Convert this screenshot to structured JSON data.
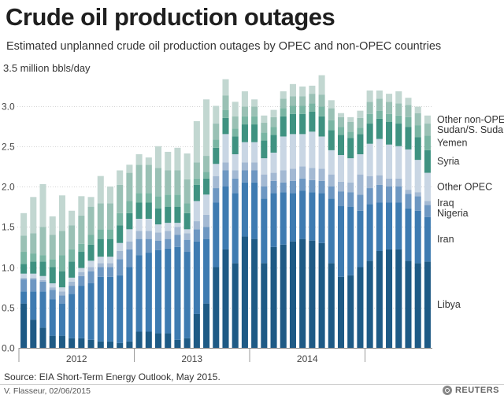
{
  "title": "Crude oil production outages",
  "subtitle": "Estimated unplanned crude oil production outages by OPEC and non-OPEC countries",
  "source": "Source: EIA Short-Term Energy Outlook, May 2015.",
  "credit": "V. Flasseur, 02/06/2015",
  "brand": "REUTERS",
  "chart_data": {
    "type": "bar",
    "stacked": true,
    "ylabel": "3.5 million bbls/day",
    "ylim": [
      0,
      3.5
    ],
    "yticks": [
      "0.0",
      "0.5",
      "1.0",
      "1.5",
      "2.0",
      "2.5",
      "3.0"
    ],
    "year_labels": [
      "2012",
      "2013",
      "2014"
    ],
    "categories": [
      "2012-01",
      "2012-02",
      "2012-03",
      "2012-04",
      "2012-05",
      "2012-06",
      "2012-07",
      "2012-08",
      "2012-09",
      "2012-10",
      "2012-11",
      "2012-12",
      "2013-01",
      "2013-02",
      "2013-03",
      "2013-04",
      "2013-05",
      "2013-06",
      "2013-07",
      "2013-08",
      "2013-09",
      "2013-10",
      "2013-11",
      "2013-12",
      "2014-01",
      "2014-02",
      "2014-03",
      "2014-04",
      "2014-05",
      "2014-06",
      "2014-07",
      "2014-08",
      "2014-09",
      "2014-10",
      "2014-11",
      "2014-12",
      "2015-01",
      "2015-02",
      "2015-03",
      "2015-04",
      "2015-05",
      "2015-06",
      "2015-07"
    ],
    "series": [
      {
        "name": "Libya",
        "color": "#1e5a85",
        "values": [
          0.55,
          0.35,
          0.25,
          0.15,
          0.15,
          0.12,
          0.12,
          0.1,
          0.08,
          0.08,
          0.06,
          0.08,
          0.2,
          0.2,
          0.18,
          0.18,
          0.1,
          0.12,
          0.42,
          0.55,
          1.0,
          1.22,
          1.05,
          1.38,
          1.35,
          1.05,
          1.25,
          1.28,
          1.32,
          1.35,
          1.33,
          1.3,
          1.05,
          0.88,
          0.9,
          1.0,
          1.08,
          1.2,
          1.22,
          1.22,
          1.08,
          1.05,
          1.07
        ]
      },
      {
        "name": "Iran",
        "color": "#3e7bb1",
        "values": [
          0.15,
          0.35,
          0.45,
          0.45,
          0.4,
          0.55,
          0.65,
          0.7,
          0.8,
          0.8,
          0.84,
          0.92,
          0.95,
          0.98,
          1.03,
          1.05,
          1.15,
          1.07,
          0.9,
          0.8,
          0.8,
          0.78,
          0.87,
          0.67,
          0.7,
          0.8,
          0.67,
          0.65,
          0.6,
          0.6,
          0.6,
          0.62,
          0.8,
          0.88,
          0.85,
          0.7,
          0.7,
          0.6,
          0.58,
          0.58,
          0.65,
          0.65,
          0.55
        ]
      },
      {
        "name": "Nigeria",
        "color": "#6d97c2",
        "values": [
          0.15,
          0.15,
          0.12,
          0.12,
          0.1,
          0.1,
          0.12,
          0.15,
          0.12,
          0.12,
          0.2,
          0.22,
          0.2,
          0.17,
          0.12,
          0.12,
          0.15,
          0.15,
          0.15,
          0.15,
          0.18,
          0.2,
          0.18,
          0.15,
          0.15,
          0.15,
          0.15,
          0.12,
          0.15,
          0.15,
          0.15,
          0.15,
          0.15,
          0.18,
          0.18,
          0.2,
          0.2,
          0.22,
          0.2,
          0.2,
          0.18,
          0.18,
          0.15
        ]
      },
      {
        "name": "Iraq",
        "color": "#a3b9d3",
        "values": [
          0.02,
          0.02,
          0.02,
          0.03,
          0.05,
          0.05,
          0.05,
          0.05,
          0.05,
          0.05,
          0.1,
          0.1,
          0.1,
          0.1,
          0.1,
          0.1,
          0.1,
          0.08,
          0.1,
          0.15,
          0.15,
          0.1,
          0.1,
          0.1,
          0.1,
          0.15,
          0.1,
          0.15,
          0.15,
          0.15,
          0.15,
          0.15,
          0.15,
          0.12,
          0.12,
          0.25,
          0.15,
          0.12,
          0.1,
          0.1,
          0.05,
          0.05,
          0.05
        ]
      },
      {
        "name": "Other OPEC",
        "color": "#c9d6e4",
        "values": [
          0.05,
          0.05,
          0.05,
          0.05,
          0.05,
          0.05,
          0.05,
          0.08,
          0.08,
          0.08,
          0.1,
          0.15,
          0.15,
          0.15,
          0.1,
          0.1,
          0.05,
          0.05,
          0.25,
          0.25,
          0.15,
          0.35,
          0.2,
          0.25,
          0.25,
          0.2,
          0.25,
          0.42,
          0.43,
          0.4,
          0.45,
          0.4,
          0.3,
          0.33,
          0.3,
          0.25,
          0.4,
          0.45,
          0.42,
          0.4,
          0.5,
          0.4,
          0.35
        ]
      },
      {
        "name": "Syria",
        "color": "#3f9281",
        "values": [
          0.12,
          0.15,
          0.18,
          0.2,
          0.2,
          0.2,
          0.2,
          0.2,
          0.22,
          0.22,
          0.22,
          0.2,
          0.2,
          0.2,
          0.2,
          0.2,
          0.2,
          0.2,
          0.2,
          0.2,
          0.2,
          0.2,
          0.22,
          0.22,
          0.22,
          0.22,
          0.22,
          0.25,
          0.25,
          0.25,
          0.25,
          0.25,
          0.25,
          0.25,
          0.25,
          0.25,
          0.25,
          0.25,
          0.28,
          0.28,
          0.28,
          0.28,
          0.28
        ]
      },
      {
        "name": "Yemen",
        "color": "#79b5a3",
        "values": [
          0.15,
          0.1,
          0.08,
          0.1,
          0.2,
          0.15,
          0.1,
          0.12,
          0.12,
          0.12,
          0.15,
          0.15,
          0.12,
          0.12,
          0.15,
          0.15,
          0.15,
          0.12,
          0.08,
          0.08,
          0.1,
          0.1,
          0.1,
          0.1,
          0.1,
          0.1,
          0.1,
          0.1,
          0.1,
          0.1,
          0.1,
          0.12,
          0.12,
          0.1,
          0.08,
          0.08,
          0.12,
          0.1,
          0.1,
          0.1,
          0.12,
          0.15,
          0.18
        ]
      },
      {
        "name": "Sudan/S. Sudan",
        "color": "#9ac1b5",
        "values": [
          0.2,
          0.25,
          0.35,
          0.3,
          0.3,
          0.3,
          0.35,
          0.35,
          0.32,
          0.32,
          0.35,
          0.35,
          0.35,
          0.35,
          0.35,
          0.3,
          0.3,
          0.3,
          0.2,
          0.2,
          0.2,
          0.18,
          0.15,
          0.12,
          0.12,
          0.12,
          0.12,
          0.12,
          0.12,
          0.12,
          0.12,
          0.15,
          0.15,
          0.12,
          0.12,
          0.12,
          0.15,
          0.15,
          0.15,
          0.15,
          0.15,
          0.15,
          0.15
        ]
      },
      {
        "name": "Other non-OPEC",
        "color": "#c2d7d1",
        "values": [
          0.28,
          0.45,
          0.53,
          0.23,
          0.44,
          0.18,
          0.24,
          0.12,
          0.34,
          0.21,
          0.18,
          0.1,
          0.13,
          0.09,
          0.27,
          0.23,
          0.28,
          0.32,
          0.51,
          0.7,
          0.22,
          0.2,
          0.18,
          0.19,
          0.09,
          0.09,
          0.09,
          0.09,
          0.15,
          0.12,
          0.1,
          0.24,
          0.1,
          0.05,
          0.06,
          0.09,
          0.14,
          0.1,
          0.1,
          0.15,
          0.09,
          0.08,
          0.1
        ]
      }
    ]
  }
}
